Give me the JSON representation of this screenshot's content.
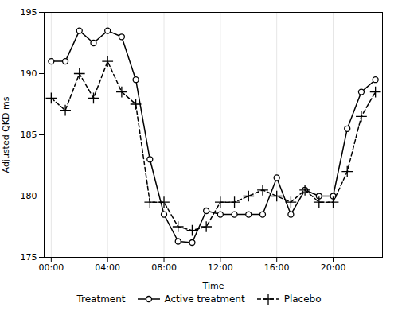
{
  "chart_data": {
    "type": "line",
    "xlabel": "Time",
    "ylabel": "Adjusted QKD ms",
    "x": [
      0,
      1,
      2,
      3,
      4,
      5,
      6,
      7,
      8,
      9,
      10,
      11,
      12,
      13,
      14,
      15,
      16,
      17,
      18,
      19,
      20,
      21,
      22,
      23
    ],
    "series": [
      {
        "name": "Active treatment",
        "color": "#000000",
        "marker": "circle",
        "line_style": "solid",
        "values": [
          191,
          191,
          193.5,
          192.5,
          193.5,
          193,
          189.5,
          183,
          178.5,
          176.3,
          176.2,
          178.8,
          178.5,
          178.5,
          178.5,
          178.5,
          181.5,
          178.5,
          180.5,
          180,
          180,
          185.5,
          188.5,
          189.5
        ]
      },
      {
        "name": "Placebo",
        "color": "#000000",
        "marker": "plus",
        "line_style": "dashed",
        "values": [
          188,
          187,
          190,
          188,
          191,
          188.5,
          187.5,
          179.5,
          179.5,
          177.5,
          177.2,
          177.5,
          179.5,
          179.5,
          180,
          180.5,
          180,
          179.5,
          180.5,
          179.5,
          179.5,
          182,
          186.5,
          188.5
        ]
      }
    ],
    "xlim": [
      -0.5,
      23.5
    ],
    "xticks": [
      {
        "value": 0,
        "label": "00:00"
      },
      {
        "value": 4,
        "label": "04:00"
      },
      {
        "value": 8,
        "label": "08:00"
      },
      {
        "value": 12,
        "label": "12:00"
      },
      {
        "value": 16,
        "label": "16:00"
      },
      {
        "value": 20,
        "label": "20:00"
      }
    ],
    "ylim": [
      175,
      195
    ],
    "yticks": [
      175,
      180,
      185,
      190,
      195
    ],
    "grid": "x",
    "legend": "bottom",
    "legend_title": "Treatment"
  }
}
